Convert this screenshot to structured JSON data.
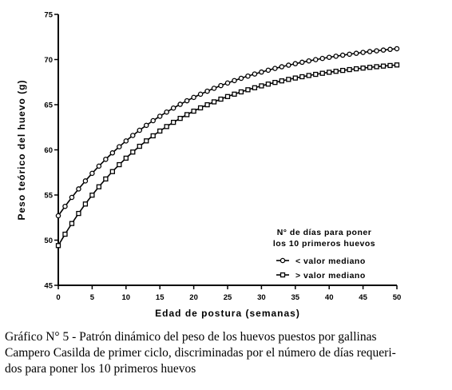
{
  "chart_data": {
    "type": "line",
    "xlabel": "Edad de postura (semanas)",
    "ylabel": "Peso teórico del huevo (g)",
    "xlim": [
      0,
      50
    ],
    "ylim": [
      45,
      75
    ],
    "xticks": [
      "0",
      "5",
      "10",
      "15",
      "20",
      "25",
      "30",
      "35",
      "40",
      "45",
      "50"
    ],
    "yticks": [
      "45",
      "50",
      "55",
      "60",
      "65",
      "70",
      "75"
    ],
    "grid": false,
    "legend": {
      "title_line1": "N° de días para poner",
      "title_line2": "los 10 primeros huevos",
      "placement": "bottom-right"
    },
    "series": [
      {
        "name": "< valor mediano",
        "marker": "circle",
        "x": [
          0,
          5,
          10,
          15,
          20,
          25,
          30,
          35,
          40,
          45,
          50
        ],
        "values": [
          52.7,
          57.5,
          61.0,
          63.7,
          65.8,
          67.4,
          68.6,
          69.5,
          70.3,
          70.8,
          71.2
        ]
      },
      {
        "name": "> valor mediano",
        "marker": "square",
        "x": [
          0,
          5,
          10,
          15,
          20,
          25,
          30,
          35,
          40,
          45,
          50
        ],
        "values": [
          49.4,
          55.1,
          59.1,
          62.1,
          64.3,
          65.9,
          67.1,
          68.0,
          68.6,
          69.1,
          69.4
        ]
      }
    ]
  },
  "caption": {
    "line1": "Gráfico N° 5 -  Patrón dinámico del peso de los huevos puestos por gallinas",
    "line2": "Campero Casilda de primer ciclo, discriminadas por el número de días requeri-",
    "line3": "dos para poner los 10 primeros huevos"
  }
}
